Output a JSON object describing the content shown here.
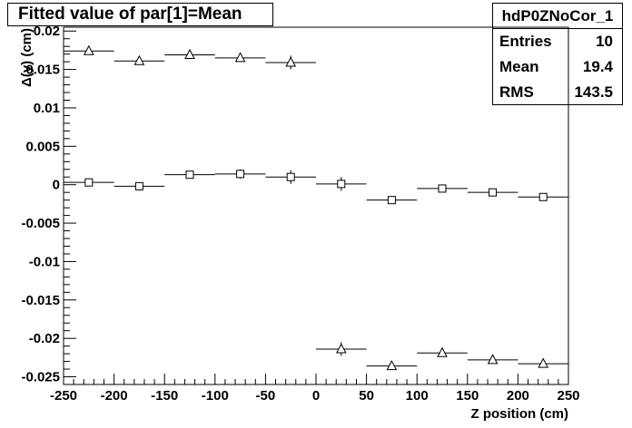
{
  "title": "Fitted value of par[1]=Mean",
  "stats": {
    "name": "hdP0ZNoCor_1",
    "rows": [
      {
        "label": "Entries",
        "value": "10"
      },
      {
        "label": "Mean",
        "value": "19.4"
      },
      {
        "label": "RMS",
        "value": "143.5"
      }
    ]
  },
  "chart_data": {
    "type": "scatter",
    "title": "Fitted value of par[1]=Mean",
    "xlabel": "Z position (cm)",
    "ylabel": "Δ(y) (cm)",
    "xlim": [
      -250,
      250
    ],
    "ylim": [
      -0.026,
      0.0205
    ],
    "x_bin_width": 50,
    "x_ticks": [
      "-250",
      "-200",
      "-150",
      "-100",
      "-50",
      "0",
      "50",
      "100",
      "150",
      "200",
      "250"
    ],
    "y_ticks": [
      "0.02",
      "0.015",
      "0.01",
      "0.005",
      "0",
      "-0.005",
      "-0.01",
      "-0.015",
      "-0.02",
      "-0.025"
    ],
    "series": [
      {
        "marker": "triangle",
        "points": [
          {
            "x": -225,
            "y": 0.0174,
            "err": 0.0005
          },
          {
            "x": -175,
            "y": 0.0161,
            "err": 0.0004
          },
          {
            "x": -125,
            "y": 0.0169,
            "err": 0.0004
          },
          {
            "x": -75,
            "y": 0.0165,
            "err": 0.0005
          },
          {
            "x": -25,
            "y": 0.0159,
            "err": 0.0009
          },
          {
            "x": 25,
            "y": -0.0214,
            "err": 0.0009
          },
          {
            "x": 75,
            "y": -0.0236,
            "err": 0.0005
          },
          {
            "x": 125,
            "y": -0.0219,
            "err": 0.0005
          },
          {
            "x": 175,
            "y": -0.0228,
            "err": 0.0004
          },
          {
            "x": 225,
            "y": -0.0233,
            "err": 0.0004
          }
        ]
      },
      {
        "marker": "square",
        "points": [
          {
            "x": -225,
            "y": 0.0003,
            "err": 0.0005
          },
          {
            "x": -175,
            "y": -0.0002,
            "err": 0.0004
          },
          {
            "x": -125,
            "y": 0.0013,
            "err": 0.0005
          },
          {
            "x": -75,
            "y": 0.0014,
            "err": 0.0006
          },
          {
            "x": -25,
            "y": 0.001,
            "err": 0.0009
          },
          {
            "x": 25,
            "y": 0.0001,
            "err": 0.0009
          },
          {
            "x": 75,
            "y": -0.002,
            "err": 0.0005
          },
          {
            "x": 125,
            "y": -0.0005,
            "err": 0.0005
          },
          {
            "x": 175,
            "y": -0.001,
            "err": 0.0004
          },
          {
            "x": 225,
            "y": -0.0016,
            "err": 0.0004
          }
        ]
      }
    ]
  }
}
